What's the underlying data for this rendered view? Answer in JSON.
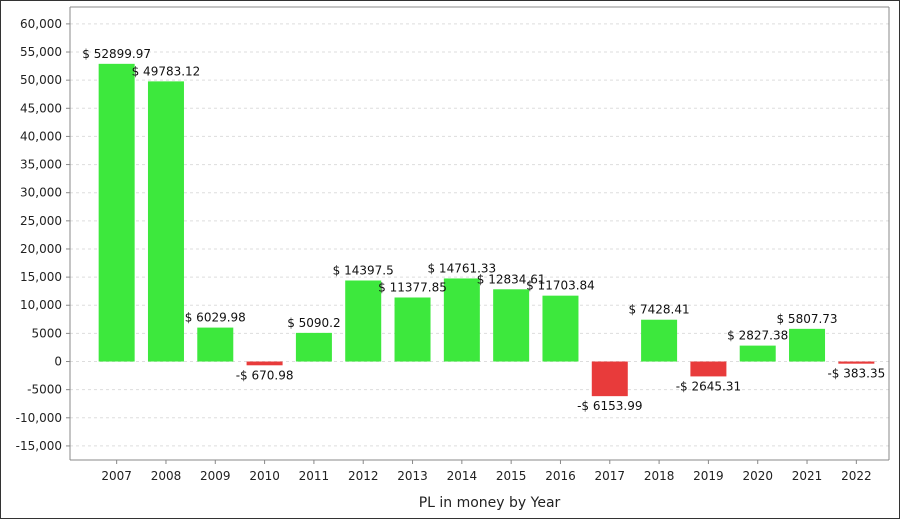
{
  "chart_data": {
    "type": "bar",
    "categories": [
      "2007",
      "2008",
      "2009",
      "2010",
      "2011",
      "2012",
      "2013",
      "2014",
      "2015",
      "2016",
      "2017",
      "2018",
      "2019",
      "2020",
      "2021",
      "2022"
    ],
    "values": [
      52899.97,
      49783.12,
      6029.98,
      -670.98,
      5090.2,
      14397.5,
      11377.85,
      14761.33,
      12834.61,
      11703.84,
      -6153.99,
      7428.41,
      -2645.31,
      2827.38,
      5807.73,
      -383.35
    ],
    "data_labels": [
      "$ 52899.97",
      "$ 49783.12",
      "$ 6029.98",
      "-$ 670.98",
      "$ 5090.2",
      "$ 14397.5",
      "$ 11377.85",
      "$ 14761.33",
      "$ 12834.61",
      "$ 11703.84",
      "-$ 6153.99",
      "$ 7428.41",
      "-$ 2645.31",
      "$ 2827.38",
      "$ 5807.73",
      "-$ 383.35"
    ],
    "y_ticks": [
      "60,000",
      "55,000",
      "50,000",
      "45,000",
      "40,000",
      "35,000",
      "30,000",
      "25,000",
      "20,000",
      "15,000",
      "10,000",
      "5000",
      "0",
      "-5000",
      "-10,000",
      "-15,000"
    ],
    "ylim": [
      -17500,
      63000
    ],
    "xlabel": "PL in money by Year",
    "ylabel": "",
    "title": "",
    "grid": true,
    "colors": {
      "positive": "#3de83d",
      "negative": "#e83b3b",
      "axis": "#888888",
      "grid": "#dddddd"
    }
  }
}
